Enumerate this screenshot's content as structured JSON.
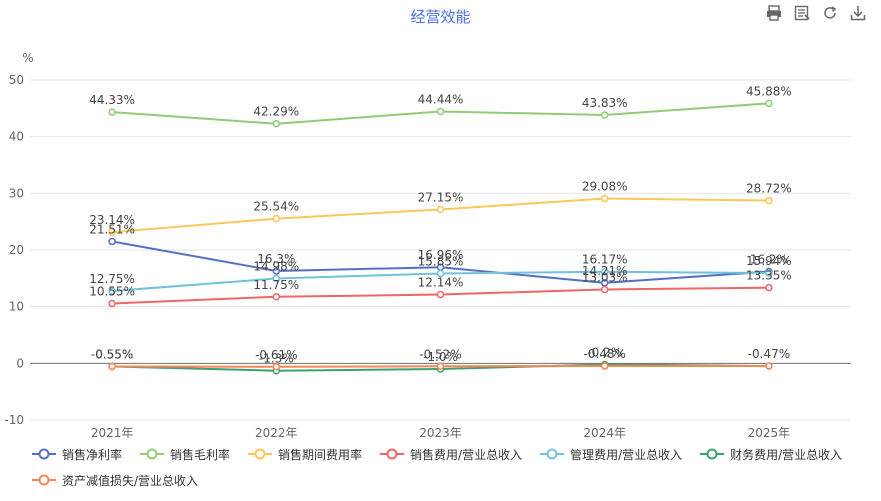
{
  "header": {
    "title": "经营效能",
    "tools": [
      "print-icon",
      "data-view-icon",
      "refresh-icon",
      "download-icon"
    ]
  },
  "chart_data": {
    "type": "line",
    "title": "经营效能",
    "ylabel": "%",
    "ylim": [
      -10,
      50
    ],
    "yticks": [
      -10,
      0,
      10,
      20,
      30,
      40,
      50
    ],
    "categories": [
      "2021年",
      "2022年",
      "2023年",
      "2024年",
      "2025年"
    ],
    "grid": true,
    "legend_position": "bottom",
    "series": [
      {
        "name": "销售净利率",
        "color": "#5470c6",
        "values": [
          21.51,
          16.3,
          16.96,
          14.21,
          16.2
        ],
        "labels": [
          "21.51%",
          "16.3%",
          "16.96%",
          "14.21%",
          "16.2%"
        ]
      },
      {
        "name": "销售毛利率",
        "color": "#91cc75",
        "values": [
          44.33,
          42.29,
          44.44,
          43.83,
          45.88
        ],
        "labels": [
          "44.33%",
          "42.29%",
          "44.44%",
          "43.83%",
          "45.88%"
        ]
      },
      {
        "name": "销售期间费用率",
        "color": "#fac858",
        "values": [
          23.14,
          25.54,
          27.15,
          29.08,
          28.72
        ],
        "labels": [
          "23.14%",
          "25.54%",
          "27.15%",
          "29.08%",
          "28.72%"
        ]
      },
      {
        "name": "销售费用/营业总收入",
        "color": "#ee6666",
        "values": [
          10.55,
          11.75,
          12.14,
          13.03,
          13.35
        ],
        "labels": [
          "10.55%",
          "11.75%",
          "12.14%",
          "13.03%",
          "13.35%"
        ]
      },
      {
        "name": "管理费用/营业总收入",
        "color": "#73c0de",
        "values": [
          12.75,
          14.98,
          15.85,
          16.17,
          15.94
        ],
        "labels": [
          "12.75%",
          "14.98%",
          "15.85%",
          "16.17%",
          "15.94%"
        ]
      },
      {
        "name": "财务费用/营业总收入",
        "color": "#3ba272",
        "values": [
          -0.55,
          -1.3,
          -1.0,
          -0.2,
          -0.47
        ],
        "labels": [
          "-0.55%",
          "-1.3%",
          "-1.0%",
          "-0.2%",
          ""
        ]
      },
      {
        "name": "资产减值损失/营业总收入",
        "color": "#fc8452",
        "values": [
          -0.55,
          -0.61,
          -0.52,
          -0.48,
          -0.47
        ],
        "labels": [
          "-0.55%",
          "-0.61%",
          "-0.52%",
          "-0.48%",
          "-0.47%"
        ]
      }
    ]
  }
}
